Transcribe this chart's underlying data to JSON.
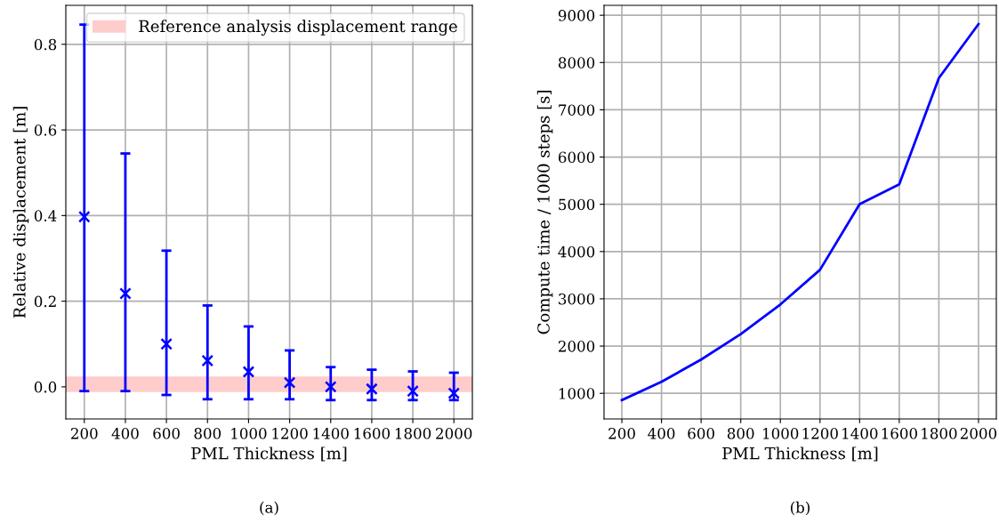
{
  "chart_data": [
    {
      "type": "scatter",
      "xlabel": "PML Thickness [m]",
      "ylabel": "Relative displacement [m]",
      "x": [
        200,
        400,
        600,
        800,
        1000,
        1200,
        1400,
        1600,
        1800,
        2000
      ],
      "series": [
        {
          "color": "#0000ff",
          "values": [
            0.397,
            0.218,
            0.1,
            0.061,
            0.035,
            0.01,
            0.0,
            -0.005,
            -0.01,
            -0.015
          ],
          "errors": [
            [
              -0.01,
              0.846
            ],
            [
              -0.01,
              0.545
            ],
            [
              -0.019,
              0.318
            ],
            [
              -0.029,
              0.19
            ],
            [
              -0.029,
              0.141
            ],
            [
              -0.029,
              0.085
            ],
            [
              -0.031,
              0.046
            ],
            [
              -0.031,
              0.04
            ],
            [
              -0.031,
              0.036
            ],
            [
              -0.031,
              0.033
            ]
          ]
        }
      ],
      "marker": "cross",
      "bands": [
        {
          "axis": "y",
          "from": -0.012,
          "to": 0.024,
          "label": "Reference analysis displacement range",
          "color": "#ffcccc"
        }
      ],
      "xlim": [
        110,
        2090
      ],
      "xticks": [
        200,
        400,
        600,
        800,
        1000,
        1200,
        1400,
        1600,
        1800,
        2000
      ],
      "ylim": [
        -0.075,
        0.891
      ],
      "yticks": [
        {
          "value": 0,
          "label": "0.0"
        },
        0.2,
        0.4,
        0.6,
        0.8
      ],
      "grid": true,
      "legend": "top right",
      "annotations": [
        "(a)"
      ]
    },
    {
      "type": "line",
      "xlabel": "PML Thickness [m]",
      "ylabel": "Compute time / 1000 steps [s]",
      "x": [
        200,
        400,
        600,
        800,
        1000,
        1200,
        1400,
        1600,
        1800,
        2000
      ],
      "series": [
        {
          "color": "#0000ff",
          "values": [
            856,
            1244,
            1714,
            2253,
            2880,
            3613,
            5003,
            5423,
            7672,
            8812
          ]
        }
      ],
      "marker": "none",
      "xlim": [
        110,
        2090
      ],
      "xticks": [
        200,
        400,
        600,
        800,
        1000,
        1200,
        1400,
        1600,
        1800,
        2000
      ],
      "ylim": [
        458,
        9210
      ],
      "yticks": [
        1000,
        2000,
        3000,
        4000,
        5000,
        6000,
        7000,
        8000,
        9000
      ],
      "grid": true,
      "annotations": [
        "(b)"
      ]
    }
  ]
}
